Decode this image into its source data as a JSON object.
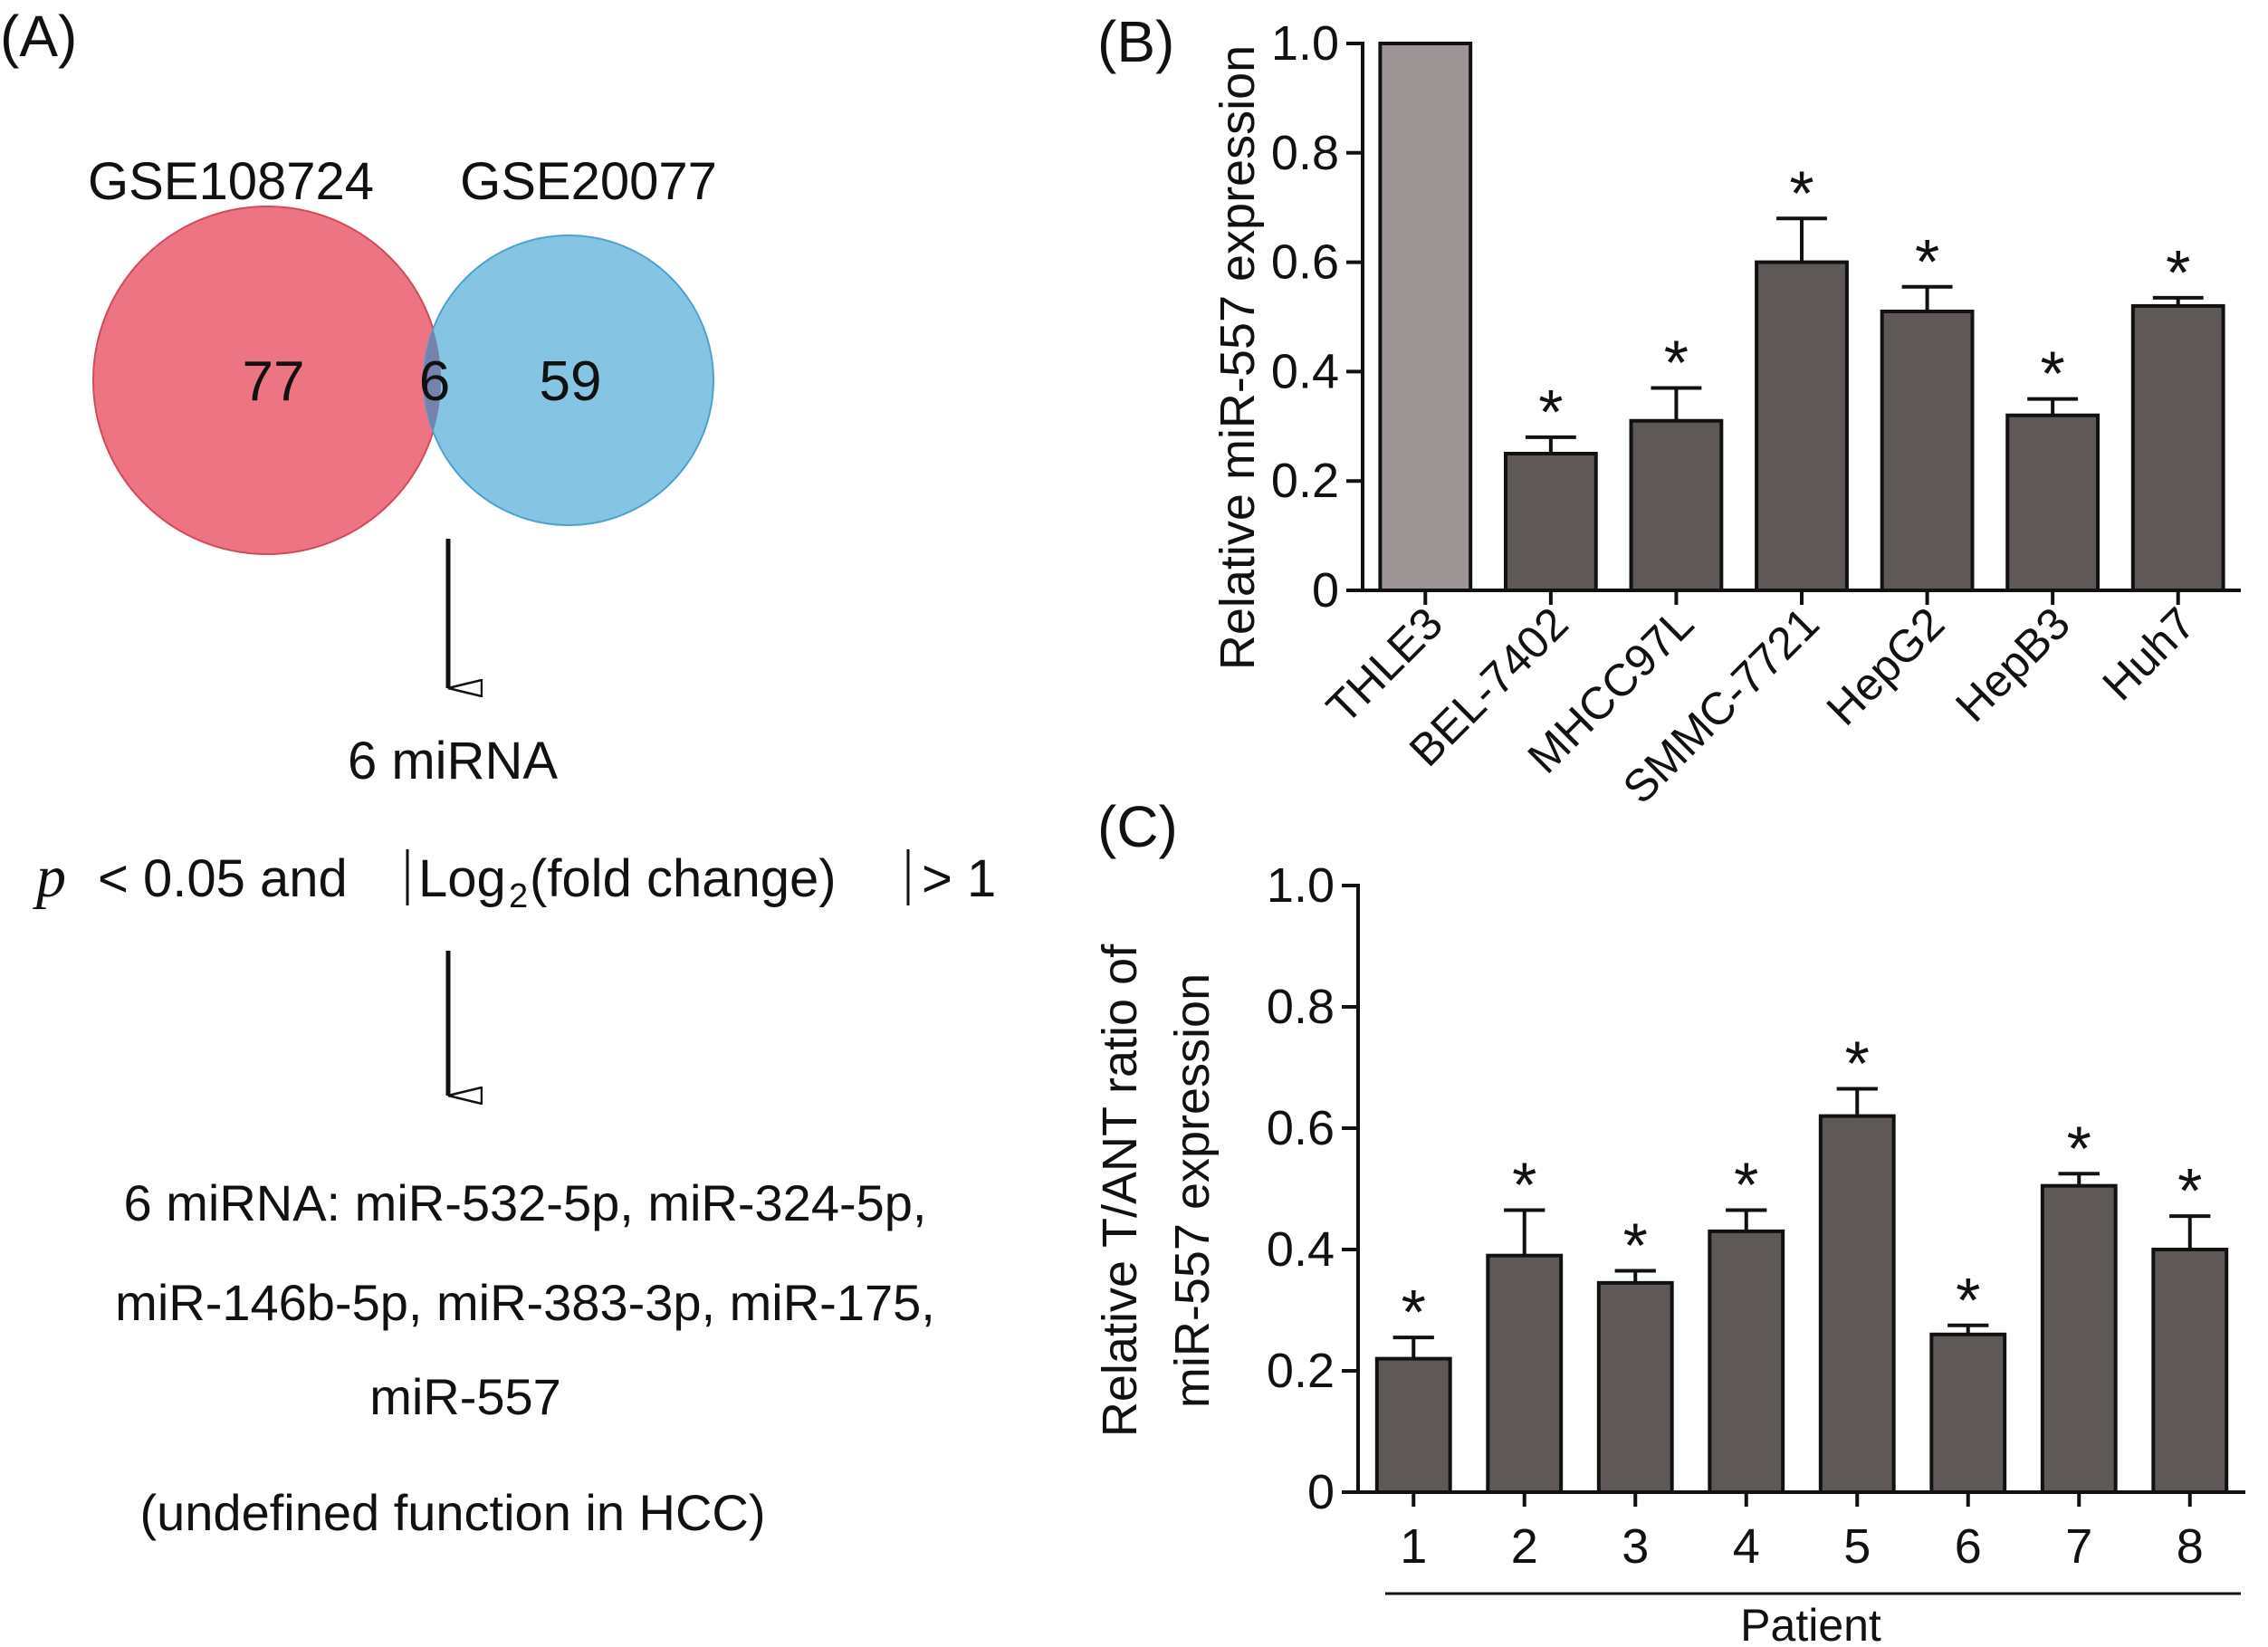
{
  "panel_a": {
    "label": "(A)",
    "venn": {
      "left_set": "GSE108724",
      "right_set": "GSE20077",
      "left_only": "77",
      "overlap": "6",
      "right_only": "59",
      "left_color": "#ED7583",
      "right_color": "#85C4E2",
      "overlap_color": "#7681AE"
    },
    "step1": "6 miRNA",
    "criteria": {
      "p": "p",
      "lt": "< 0.05 and",
      "log": "Log",
      "sub": "2",
      "fold": "(fold change)",
      "gt": "> 1"
    },
    "list_line1": "6 miRNA: miR-532-5p, miR-324-5p,",
    "list_line2": "miR-146b-5p, miR-383-3p, miR-175,",
    "highlight": "miR-557",
    "highlight_color": "#E8202A",
    "note": "(undefined function in HCC)"
  },
  "chart_data": [
    {
      "panel": "(B)",
      "type": "bar",
      "categories": [
        "THLE3",
        "BEL-7402",
        "MHCC97L",
        "SMMC-7721",
        "HepG2",
        "HepB3",
        "Huh7"
      ],
      "values": [
        1.0,
        0.25,
        0.31,
        0.6,
        0.51,
        0.32,
        0.52
      ],
      "errors": [
        0,
        0.03,
        0.06,
        0.08,
        0.045,
        0.03,
        0.015
      ],
      "significant": [
        false,
        true,
        true,
        true,
        true,
        true,
        true
      ],
      "marker": "*",
      "bar_colors": [
        "#9D9595",
        "#5E5857",
        "#5E5857",
        "#5E5857",
        "#5E5857",
        "#5E5857",
        "#5E5857"
      ],
      "ylabel": "Relative miR-557 expression",
      "xlabel": "",
      "ylim": [
        0,
        1.0
      ],
      "yticks": [
        "0",
        "0.2",
        "0.4",
        "0.6",
        "0.8",
        "1.0"
      ]
    },
    {
      "panel": "(C)",
      "type": "bar",
      "categories": [
        "1",
        "2",
        "3",
        "4",
        "5",
        "6",
        "7",
        "8"
      ],
      "values": [
        0.22,
        0.39,
        0.345,
        0.43,
        0.62,
        0.26,
        0.505,
        0.4
      ],
      "errors": [
        0.035,
        0.075,
        0.02,
        0.035,
        0.045,
        0.015,
        0.02,
        0.055
      ],
      "significant": [
        true,
        true,
        true,
        true,
        true,
        true,
        true,
        true
      ],
      "marker": "*",
      "bar_color": "#5E5857",
      "ylabel_line1": "Relative T/ANT ratio of",
      "ylabel_line2": "miR-557 expression",
      "xlabel": "Patient",
      "ylim": [
        0,
        1.0
      ],
      "yticks": [
        "0",
        "0.2",
        "0.4",
        "0.6",
        "0.8",
        "1.0"
      ]
    }
  ]
}
